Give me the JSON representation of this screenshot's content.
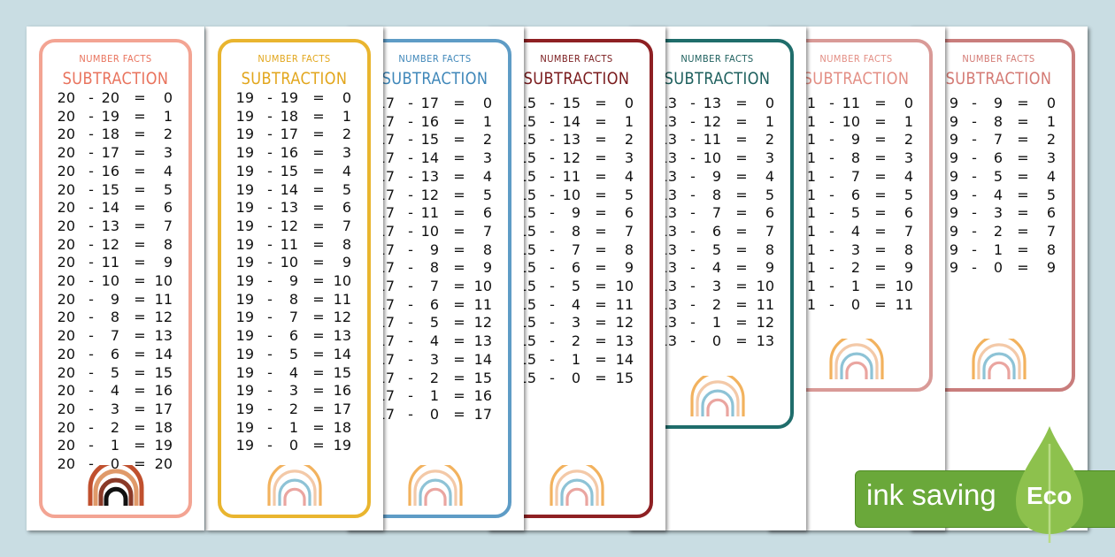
{
  "background_color": "#c9dde3",
  "badge": {
    "text": "ink saving",
    "eco": "Eco",
    "color": "#6aa83a",
    "leaf_color": "#8dc14d"
  },
  "cards": [
    {
      "kicker": "NUMBER FACTS",
      "title": "SUBTRACTION",
      "border": "#f3a493",
      "title_color": "#e9735d",
      "rainbow": "dark",
      "rows": [
        [
          20,
          20,
          0
        ],
        [
          20,
          19,
          1
        ],
        [
          20,
          18,
          2
        ],
        [
          20,
          17,
          3
        ],
        [
          20,
          16,
          4
        ],
        [
          20,
          15,
          5
        ],
        [
          20,
          14,
          6
        ],
        [
          20,
          13,
          7
        ],
        [
          20,
          12,
          8
        ],
        [
          20,
          11,
          9
        ],
        [
          20,
          10,
          10
        ],
        [
          20,
          9,
          11
        ],
        [
          20,
          8,
          12
        ],
        [
          20,
          7,
          13
        ],
        [
          20,
          6,
          14
        ],
        [
          20,
          5,
          15
        ],
        [
          20,
          4,
          16
        ],
        [
          20,
          3,
          17
        ],
        [
          20,
          2,
          18
        ],
        [
          20,
          1,
          19
        ],
        [
          20,
          0,
          20
        ]
      ]
    },
    {
      "kicker": "NUMBER FACTS",
      "title": "SUBTRACTION",
      "border": "#e9b52f",
      "title_color": "#e2a61c",
      "rainbow": "pastel",
      "rows": [
        [
          19,
          19,
          0
        ],
        [
          19,
          18,
          1
        ],
        [
          19,
          17,
          2
        ],
        [
          19,
          16,
          3
        ],
        [
          19,
          15,
          4
        ],
        [
          19,
          14,
          5
        ],
        [
          19,
          13,
          6
        ],
        [
          19,
          12,
          7
        ],
        [
          19,
          11,
          8
        ],
        [
          19,
          10,
          9
        ],
        [
          19,
          9,
          10
        ],
        [
          19,
          8,
          11
        ],
        [
          19,
          7,
          12
        ],
        [
          19,
          6,
          13
        ],
        [
          19,
          5,
          14
        ],
        [
          19,
          4,
          15
        ],
        [
          19,
          3,
          16
        ],
        [
          19,
          2,
          17
        ],
        [
          19,
          1,
          18
        ],
        [
          19,
          0,
          19
        ]
      ]
    },
    {
      "kicker": "NUMBER FACTS",
      "title": "SUBTRACTION",
      "border": "#5e9cc6",
      "title_color": "#3f87b9",
      "rainbow": "pastel",
      "rows": [
        [
          17,
          17,
          0
        ],
        [
          17,
          16,
          1
        ],
        [
          17,
          15,
          2
        ],
        [
          17,
          14,
          3
        ],
        [
          17,
          13,
          4
        ],
        [
          17,
          12,
          5
        ],
        [
          17,
          11,
          6
        ],
        [
          17,
          10,
          7
        ],
        [
          17,
          9,
          8
        ],
        [
          17,
          8,
          9
        ],
        [
          17,
          7,
          10
        ],
        [
          17,
          6,
          11
        ],
        [
          17,
          5,
          12
        ],
        [
          17,
          4,
          13
        ],
        [
          17,
          3,
          14
        ],
        [
          17,
          2,
          15
        ],
        [
          17,
          1,
          16
        ],
        [
          17,
          0,
          17
        ]
      ]
    },
    {
      "kicker": "NUMBER FACTS",
      "title": "SUBTRACTION",
      "border": "#8e2023",
      "title_color": "#7a1b1d",
      "rainbow": "pastel",
      "rows": [
        [
          15,
          15,
          0
        ],
        [
          15,
          14,
          1
        ],
        [
          15,
          13,
          2
        ],
        [
          15,
          12,
          3
        ],
        [
          15,
          11,
          4
        ],
        [
          15,
          10,
          5
        ],
        [
          15,
          9,
          6
        ],
        [
          15,
          8,
          7
        ],
        [
          15,
          7,
          8
        ],
        [
          15,
          6,
          9
        ],
        [
          15,
          5,
          10
        ],
        [
          15,
          4,
          11
        ],
        [
          15,
          3,
          12
        ],
        [
          15,
          2,
          13
        ],
        [
          15,
          1,
          14
        ],
        [
          15,
          0,
          15
        ]
      ]
    },
    {
      "kicker": "NUMBER FACTS",
      "title": "SUBTRACTION",
      "border": "#1f6d6b",
      "title_color": "#1d5f5d",
      "rainbow": "pastel",
      "rows": [
        [
          13,
          13,
          0
        ],
        [
          13,
          12,
          1
        ],
        [
          13,
          11,
          2
        ],
        [
          13,
          10,
          3
        ],
        [
          13,
          9,
          4
        ],
        [
          13,
          8,
          5
        ],
        [
          13,
          7,
          6
        ],
        [
          13,
          6,
          7
        ],
        [
          13,
          5,
          8
        ],
        [
          13,
          4,
          9
        ],
        [
          13,
          3,
          10
        ],
        [
          13,
          2,
          11
        ],
        [
          13,
          1,
          12
        ],
        [
          13,
          0,
          13
        ]
      ]
    },
    {
      "kicker": "NUMBER FACTS",
      "title": "SUBTRACTION",
      "border": "#d99a97",
      "title_color": "#e38e84",
      "rainbow": "pastel",
      "rows": [
        [
          11,
          11,
          0
        ],
        [
          11,
          10,
          1
        ],
        [
          11,
          9,
          2
        ],
        [
          11,
          8,
          3
        ],
        [
          11,
          7,
          4
        ],
        [
          11,
          6,
          5
        ],
        [
          11,
          5,
          6
        ],
        [
          11,
          4,
          7
        ],
        [
          11,
          3,
          8
        ],
        [
          11,
          2,
          9
        ],
        [
          11,
          1,
          10
        ],
        [
          11,
          0,
          11
        ]
      ]
    },
    {
      "kicker": "NUMBER FACTS",
      "title": "SUBTRACTION",
      "border": "#c97d7c",
      "title_color": "#d47a74",
      "rainbow": "pastel",
      "rows": [
        [
          9,
          9,
          0
        ],
        [
          9,
          8,
          1
        ],
        [
          9,
          7,
          2
        ],
        [
          9,
          6,
          3
        ],
        [
          9,
          5,
          4
        ],
        [
          9,
          4,
          5
        ],
        [
          9,
          3,
          6
        ],
        [
          9,
          2,
          7
        ],
        [
          9,
          1,
          8
        ],
        [
          9,
          0,
          9
        ]
      ]
    }
  ]
}
